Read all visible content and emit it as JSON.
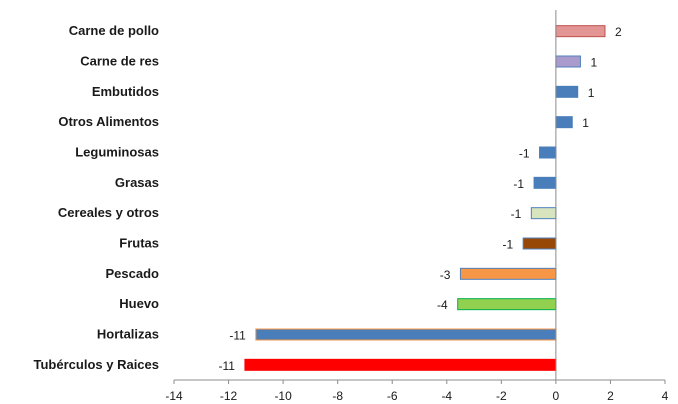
{
  "chart_data": {
    "type": "bar",
    "orientation": "horizontal",
    "categories": [
      "Carne de pollo",
      "Carne de res",
      "Embutidos",
      "Otros Alimentos",
      "Leguminosas",
      "Grasas",
      "Cereales y otros",
      "Frutas",
      "Pescado",
      "Huevo",
      "Hortalizas",
      "Tubérculos y Raices"
    ],
    "values": [
      1.8,
      0.9,
      0.8,
      0.6,
      -0.6,
      -0.8,
      -0.9,
      -1.2,
      -3.5,
      -3.6,
      -11.0,
      -11.4
    ],
    "data_labels": [
      "2",
      "1",
      "1",
      "1",
      "-1",
      "-1",
      "-1",
      "-1",
      "-3",
      "-4",
      "-11",
      "-11"
    ],
    "bar_colors": [
      "#e39593",
      "#a99bcc",
      "#4a7ebb",
      "#4a7ebb",
      "#4a7ebb",
      "#4a7ebb",
      "#d7e4bd",
      "#974706",
      "#f79646",
      "#92d050",
      "#4a7ebb",
      "#ff0000"
    ],
    "bar_edge_colors": [
      "#c0504d",
      "#4f81bd",
      "#4a7ebb",
      "#4a7ebb",
      "#4a7ebb",
      "#4a7ebb",
      "#4f81bd",
      "#4f81bd",
      "#4f81bd",
      "#00b050",
      "#f79646",
      "#ff0000"
    ],
    "xlim": [
      -14,
      4
    ],
    "xticks": [
      -14,
      -12,
      -10,
      -8,
      -6,
      -4,
      -2,
      0,
      2,
      4
    ],
    "grid": false,
    "legend": "none",
    "title": "",
    "xlabel": "",
    "ylabel": ""
  }
}
